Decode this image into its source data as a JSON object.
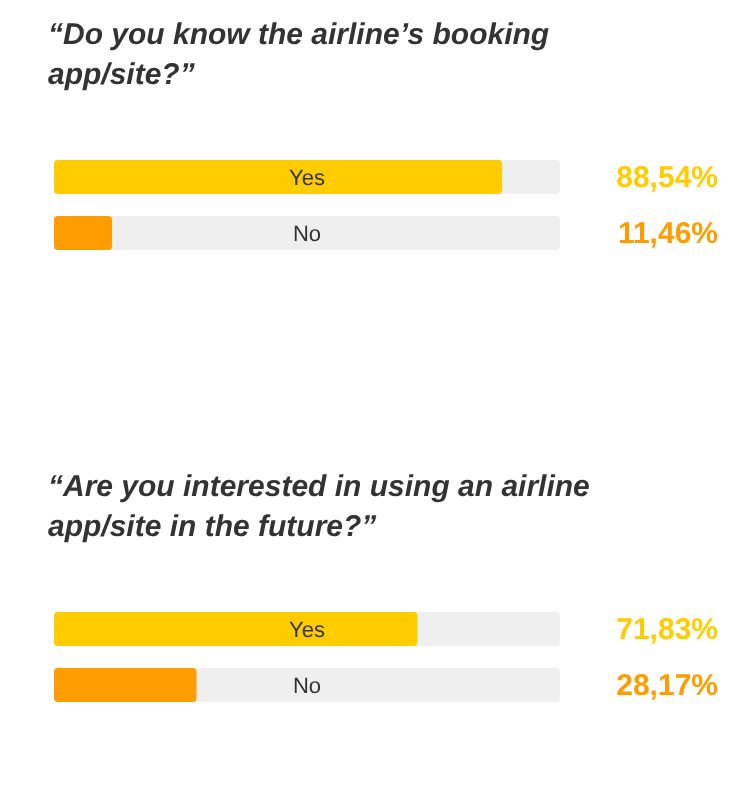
{
  "chart_data": [
    {
      "type": "bar",
      "orientation": "horizontal",
      "title": "“Do you know the airline’s booking app/site?”",
      "categories": [
        "Yes",
        "No"
      ],
      "values": [
        88.54,
        11.46
      ],
      "colors": [
        "#ffcc00",
        "#ff9d00"
      ],
      "value_labels": [
        "88,54%",
        "11,46%"
      ],
      "xlim": [
        0,
        100
      ],
      "tick_labels": "y"
    },
    {
      "type": "bar",
      "orientation": "horizontal",
      "title": "“Are you interested in using an airline app/site in the future?”",
      "categories": [
        "Yes",
        "No"
      ],
      "values": [
        71.83,
        28.17
      ],
      "colors": [
        "#ffcc00",
        "#ff9d00"
      ],
      "value_labels": [
        "71,83%",
        "28,17%"
      ],
      "xlim": [
        0,
        100
      ],
      "tick_labels": "y"
    }
  ]
}
